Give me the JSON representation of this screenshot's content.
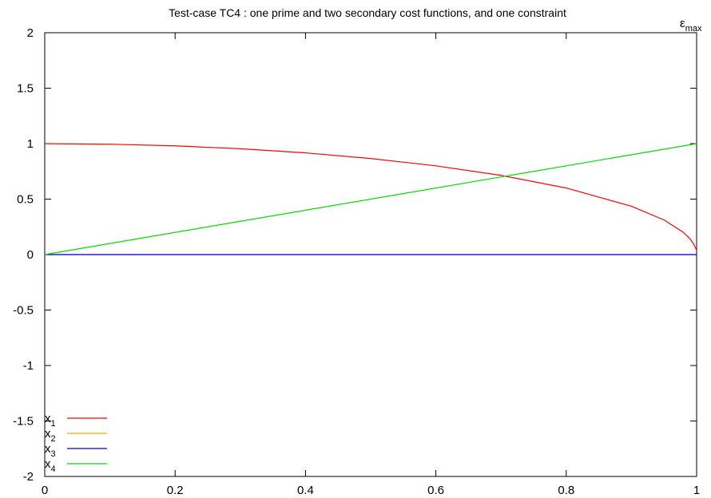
{
  "chart_data": {
    "type": "line",
    "title": "Test-case TC4 : one prime and two secondary cost functions, and one constraint",
    "xlabel": "ε",
    "xlabel_sub": "max",
    "ylabel": "",
    "xlim": [
      0,
      1
    ],
    "ylim": [
      -2,
      2
    ],
    "x_ticks": [
      "0",
      "0.2",
      "0.4",
      "0.6",
      "0.8",
      "1"
    ],
    "y_ticks": [
      "-2",
      "-1.5",
      "-1",
      "-0.5",
      "0",
      "0.5",
      "1",
      "1.5",
      "2"
    ],
    "legend_position": "bottom-left",
    "grid": false,
    "series": [
      {
        "name": "x",
        "sub": "1",
        "color": "#ff0000",
        "x": [
          0,
          0.1,
          0.2,
          0.3,
          0.4,
          0.5,
          0.6,
          0.7,
          0.8,
          0.9,
          0.95,
          0.98,
          0.99,
          0.995,
          1.0
        ],
        "y": [
          1.0,
          0.995,
          0.98,
          0.954,
          0.917,
          0.866,
          0.8,
          0.714,
          0.6,
          0.436,
          0.312,
          0.199,
          0.141,
          0.1,
          0.04
        ]
      },
      {
        "name": "x",
        "sub": "2",
        "color": "#ffa500",
        "x": [
          0,
          1
        ],
        "y": [
          0,
          0
        ]
      },
      {
        "name": "x",
        "sub": "3",
        "color": "#0000cc",
        "x": [
          0,
          1
        ],
        "y": [
          0,
          0
        ]
      },
      {
        "name": "x",
        "sub": "4",
        "color": "#00dd00",
        "x": [
          0,
          1
        ],
        "y": [
          0,
          1
        ]
      }
    ]
  }
}
